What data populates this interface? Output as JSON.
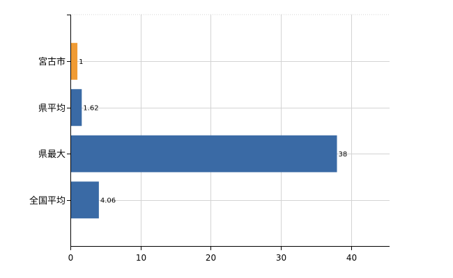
{
  "chart_data": {
    "type": "bar",
    "orientation": "horizontal",
    "categories": [
      "宮古市",
      "県平均",
      "県最大",
      "全国平均"
    ],
    "values": [
      1,
      1.62,
      38,
      4.06
    ],
    "data_labels": [
      "1",
      "1.62",
      "38",
      "4.06"
    ],
    "bar_colors": [
      "#f09b33",
      "#3a6aa5",
      "#3a6aa5",
      "#3a6aa5"
    ],
    "highlight_color": "#f09b33",
    "bar_color": "#3a6aa5",
    "title": "",
    "xlabel": "",
    "ylabel": "",
    "xlim": [
      0,
      45.5
    ],
    "x_ticks": [
      0,
      10,
      20,
      30,
      40
    ],
    "x_tick_labels": [
      "0",
      "10",
      "20",
      "30",
      "40"
    ],
    "grid": true,
    "legend": "none"
  }
}
